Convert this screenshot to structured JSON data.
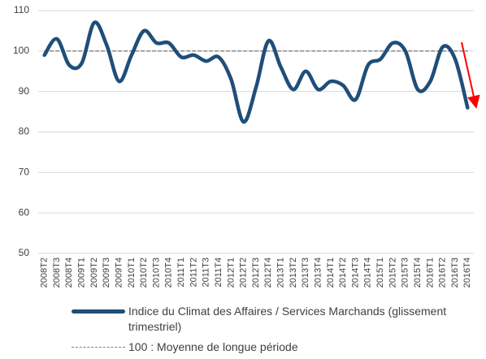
{
  "chart_data": {
    "type": "line",
    "categories": [
      "2008T2",
      "2008T3",
      "2008T4",
      "2009T1",
      "2009T2",
      "2009T3",
      "2009T4",
      "2010T1",
      "2010T2",
      "2010T3",
      "2010T4",
      "2011T1",
      "2011T2",
      "2011T3",
      "2011T4",
      "2012T1",
      "2012T2",
      "2012T3",
      "2012T4",
      "2013T1",
      "2013T2",
      "2013T3",
      "2013T4",
      "2014T1",
      "2014T2",
      "2014T3",
      "2014T4",
      "2015T1",
      "2015T2",
      "2015T3",
      "2015T4",
      "2016T1",
      "2016T2",
      "2016T3",
      "2016T4"
    ],
    "series": [
      {
        "name": "Indice du Climat des Affaires / Services Marchands (glissement trimestriel)",
        "color": "#1f4e79",
        "style": "solid",
        "values": [
          99,
          103,
          96.5,
          97,
          107,
          101.5,
          92.5,
          99,
          105,
          102,
          102,
          98.5,
          99,
          97.5,
          98.5,
          93,
          82.5,
          91,
          102.5,
          96,
          90.5,
          95,
          90.5,
          92.5,
          91.5,
          88,
          96.5,
          98,
          102,
          100,
          90.5,
          92.5,
          101,
          98,
          86
        ]
      },
      {
        "name": "100 : Moyenne de longue période",
        "color": "#7f7f7f",
        "style": "dashed",
        "values": [
          100,
          100,
          100,
          100,
          100,
          100,
          100,
          100,
          100,
          100,
          100,
          100,
          100,
          100,
          100,
          100,
          100,
          100,
          100,
          100,
          100,
          100,
          100,
          100,
          100,
          100,
          100,
          100,
          100,
          100,
          100,
          100,
          100,
          100,
          100
        ]
      }
    ],
    "ylim": [
      50,
      110
    ],
    "yticks": [
      50,
      60,
      70,
      80,
      90,
      100,
      110
    ],
    "grid": true
  }
}
